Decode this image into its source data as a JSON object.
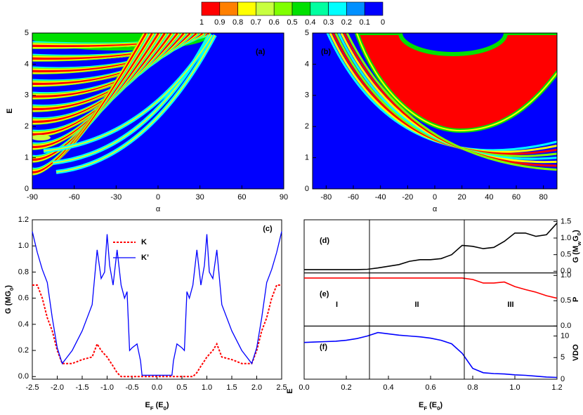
{
  "colorbar": {
    "labels": [
      1,
      0.9,
      0.8,
      0.7,
      0.6,
      0.5,
      0.4,
      0.3,
      0.2,
      0.1,
      0
    ],
    "colors": [
      "#ff0000",
      "#ff8000",
      "#ffff00",
      "#c8ff40",
      "#80ff00",
      "#00e000",
      "#00ffa0",
      "#00ffff",
      "#0090ff",
      "#0000ff"
    ]
  },
  "chart_data": [
    {
      "type": "contour",
      "panel_label": "(a)",
      "xlabel": "α",
      "ylabel": "E",
      "xlim": [
        -90,
        90
      ],
      "ylim": [
        0,
        5
      ],
      "xticks": [
        -90,
        -60,
        -30,
        0,
        30,
        60,
        90
      ],
      "yticks": [
        0,
        1,
        2,
        3,
        4,
        5
      ]
    },
    {
      "type": "contour",
      "panel_label": "(b)",
      "xlabel": "α",
      "ylabel": "E",
      "xlim": [
        -90,
        90
      ],
      "ylim": [
        0,
        5
      ],
      "xticks": [
        -80,
        -60,
        -40,
        -20,
        0,
        20,
        40,
        60,
        80
      ],
      "yticks": [
        0,
        1,
        2,
        3,
        4,
        5
      ]
    },
    {
      "type": "line",
      "panel_label": "(c)",
      "xlabel": "E_F (E_0)",
      "ylabel": "G (MG_0)",
      "legend": "upper center",
      "xlim": [
        -2.5,
        2.5
      ],
      "ylim": [
        -0.02,
        1.2
      ],
      "xticks": [
        -2.5,
        {
          "value": -2,
          "label": "-2.0"
        },
        -1.5,
        {
          "value": -1,
          "label": "-1.0"
        },
        -0.5,
        {
          "value": 0,
          "label": "0.0"
        },
        0.5,
        {
          "value": 1,
          "label": "1.0"
        },
        1.5,
        {
          "value": 2,
          "label": "2.0"
        },
        2.5
      ],
      "yticks": [
        {
          "value": 0,
          "label": "0.0"
        },
        0.2,
        0.4,
        0.6,
        0.8,
        {
          "value": 1,
          "label": "1.0"
        },
        1.2
      ],
      "x": [
        -2.5,
        -2.4,
        -2.3,
        -2.2,
        -2.1,
        -2.0,
        -1.9,
        -1.7,
        -1.5,
        -1.3,
        -1.2,
        -1.12,
        -1.05,
        -1.0,
        -0.95,
        -0.88,
        -0.8,
        -0.72,
        -0.65,
        -0.6,
        -0.55,
        -0.5,
        -0.4,
        -0.33,
        -0.3,
        0,
        0.3,
        0.33,
        0.4,
        0.5,
        0.55,
        0.6,
        0.65,
        0.72,
        0.8,
        0.88,
        0.95,
        1.0,
        1.05,
        1.12,
        1.2,
        1.3,
        1.5,
        1.7,
        1.9,
        2.0,
        2.1,
        2.2,
        2.3,
        2.4,
        2.5
      ],
      "series": [
        {
          "name": "K",
          "color": "#ff0000",
          "dash": true,
          "values": [
            0.7,
            0.7,
            0.6,
            0.45,
            0.35,
            0.2,
            0.1,
            0.1,
            0.13,
            0.15,
            0.25,
            0.2,
            0.17,
            0.15,
            0.12,
            0.08,
            0.03,
            0,
            0,
            0,
            0,
            0,
            0,
            0,
            0,
            0,
            0,
            0,
            0,
            0,
            0,
            0,
            0,
            0,
            0.03,
            0.08,
            0.12,
            0.15,
            0.17,
            0.2,
            0.25,
            0.15,
            0.13,
            0.1,
            0.1,
            0.2,
            0.35,
            0.45,
            0.6,
            0.7,
            0.7
          ]
        },
        {
          "name": "K’",
          "color": "#0000ff",
          "dash": false,
          "values": [
            1.11,
            0.95,
            0.82,
            0.72,
            0.45,
            0.22,
            0.1,
            0.2,
            0.35,
            0.55,
            0.97,
            0.75,
            0.8,
            1.09,
            0.85,
            0.7,
            0.97,
            0.7,
            0.6,
            0.65,
            0.2,
            0.22,
            0.25,
            0.12,
            0.01,
            0.01,
            0.01,
            0.12,
            0.25,
            0.22,
            0.2,
            0.65,
            0.6,
            0.7,
            0.97,
            0.7,
            0.85,
            1.09,
            0.8,
            0.75,
            0.97,
            0.55,
            0.35,
            0.2,
            0.1,
            0.22,
            0.45,
            0.72,
            0.82,
            0.95,
            1.11
          ]
        }
      ]
    },
    {
      "type": "stacked-line",
      "xlabel": "E_F (E_0)",
      "xlim": [
        0,
        1.2
      ],
      "xticks": [
        {
          "value": 0,
          "label": "0.0"
        },
        0.2,
        0.4,
        0.6,
        0.8,
        {
          "value": 1,
          "label": "1.0"
        },
        1.2
      ],
      "vlines": [
        0.31,
        0.76
      ],
      "regions": [
        "I",
        "II",
        "III"
      ],
      "region_panel": 1,
      "x": [
        0,
        0.05,
        0.1,
        0.15,
        0.2,
        0.25,
        0.3,
        0.35,
        0.4,
        0.45,
        0.5,
        0.55,
        0.6,
        0.65,
        0.7,
        0.75,
        0.8,
        0.85,
        0.9,
        0.95,
        1.0,
        1.05,
        1.1,
        1.15,
        1.2
      ],
      "panels": [
        {
          "panel_label": "(d)",
          "ylabel": "G (M_wG_0)",
          "color": "#000000",
          "ylim": [
            -0.05,
            1.55
          ],
          "yticks": [
            {
              "value": 0,
              "label": "0.0"
            },
            0.5,
            {
              "value": 1,
              "label": "1.0"
            },
            1.5
          ],
          "values": [
            0.05,
            0.05,
            0.05,
            0.05,
            0.05,
            0.05,
            0.06,
            0.1,
            0.15,
            0.2,
            0.3,
            0.35,
            0.35,
            0.38,
            0.5,
            0.78,
            0.75,
            0.68,
            0.72,
            0.9,
            1.15,
            1.15,
            1.05,
            1.1,
            1.45
          ]
        },
        {
          "panel_label": "(e)",
          "ylabel": "P",
          "color": "#ff0000",
          "ylim": [
            0,
            1.05
          ],
          "yticks": [
            {
              "value": 0,
              "label": "0.0"
            },
            0.5,
            {
              "value": 1,
              "label": "1.0"
            }
          ],
          "values": [
            0.95,
            0.95,
            0.95,
            0.95,
            0.95,
            0.95,
            0.95,
            0.95,
            0.95,
            0.95,
            0.95,
            0.95,
            0.95,
            0.95,
            0.95,
            0.95,
            0.92,
            0.85,
            0.85,
            0.87,
            0.78,
            0.72,
            0.67,
            0.6,
            0.55
          ]
        },
        {
          "panel_label": "(f)",
          "ylabel": "VDO",
          "color": "#0000ff",
          "ylim": [
            0,
            12.3
          ],
          "yticks": [
            0,
            5,
            10
          ],
          "values": [
            8.5,
            8.6,
            8.7,
            8.8,
            9,
            9.4,
            10,
            10.8,
            10.5,
            10.2,
            10,
            9.8,
            9.5,
            9,
            8.2,
            6,
            2.5,
            1.5,
            1.3,
            1.2,
            1,
            0.9,
            0.7,
            0.5,
            0.4
          ]
        }
      ]
    }
  ]
}
